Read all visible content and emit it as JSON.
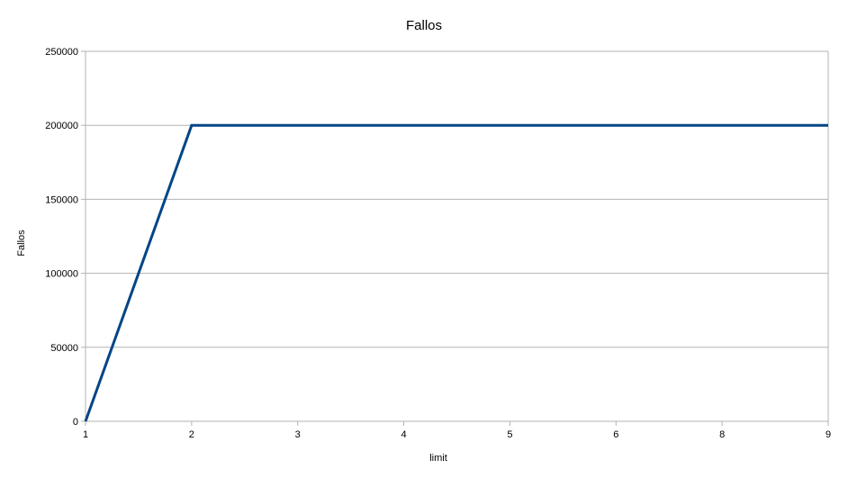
{
  "chart_data": {
    "type": "line",
    "title": "Fallos",
    "xlabel": "limit",
    "ylabel": "Fallos",
    "x_ticks": [
      "1",
      "2",
      "3",
      "4",
      "5",
      "6",
      "8",
      "9"
    ],
    "y_ticks": [
      0,
      50000,
      100000,
      150000,
      200000,
      250000
    ],
    "ylim": [
      0,
      250000
    ],
    "grid": true,
    "legend": "none",
    "series": [
      {
        "color": "#004586",
        "points": [
          {
            "x": "1",
            "y": 0
          },
          {
            "x": "2",
            "y": 200000
          },
          {
            "x": "3",
            "y": 200000
          },
          {
            "x": "4",
            "y": 200000
          },
          {
            "x": "5",
            "y": 200000
          },
          {
            "x": "6",
            "y": 200000
          },
          {
            "x": "8",
            "y": 200000
          },
          {
            "x": "9",
            "y": 200000
          }
        ]
      }
    ],
    "colors": {
      "grid": "#b3b3b3",
      "axis": "#b3b3b3",
      "line": "#004586"
    }
  }
}
